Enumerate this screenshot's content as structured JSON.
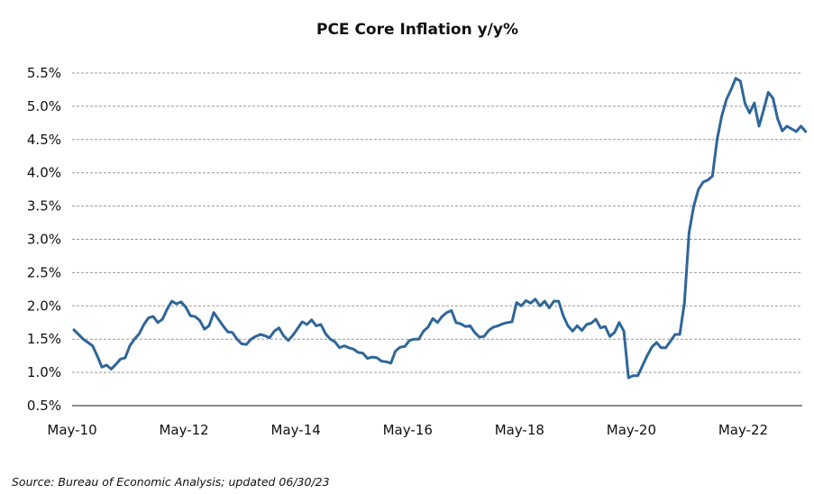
{
  "chart_data": {
    "type": "line",
    "title": "PCE Core Inflation y/y%",
    "xlabel": "",
    "ylabel": "",
    "source": "Source: Bureau of Economic Analysis; updated 06/30/23",
    "start_month": "May-10",
    "frequency": "monthly",
    "x_tick_labels": [
      "May-10",
      "May-12",
      "May-14",
      "May-16",
      "May-18",
      "May-20",
      "May-22"
    ],
    "y_tick_labels": [
      "0.5%",
      "1.0%",
      "1.5%",
      "2.0%",
      "2.5%",
      "3.0%",
      "3.5%",
      "4.0%",
      "4.5%",
      "5.0%",
      "5.5%"
    ],
    "ylim": [
      0.5,
      5.5
    ],
    "grid": "horizontal dashed",
    "line_color": "#2e6699",
    "series": [
      {
        "name": "PCE Core Inflation y/y%",
        "values": [
          1.64,
          1.57,
          1.5,
          1.45,
          1.4,
          1.25,
          1.08,
          1.11,
          1.05,
          1.12,
          1.2,
          1.22,
          1.4,
          1.5,
          1.58,
          1.72,
          1.82,
          1.84,
          1.75,
          1.8,
          1.95,
          2.07,
          2.03,
          2.06,
          1.98,
          1.85,
          1.84,
          1.78,
          1.65,
          1.7,
          1.9,
          1.8,
          1.7,
          1.61,
          1.6,
          1.5,
          1.43,
          1.42,
          1.5,
          1.54,
          1.57,
          1.55,
          1.52,
          1.62,
          1.67,
          1.55,
          1.48,
          1.56,
          1.66,
          1.76,
          1.72,
          1.79,
          1.7,
          1.72,
          1.58,
          1.5,
          1.46,
          1.37,
          1.4,
          1.37,
          1.35,
          1.3,
          1.29,
          1.21,
          1.23,
          1.22,
          1.17,
          1.16,
          1.14,
          1.32,
          1.38,
          1.39,
          1.48,
          1.5,
          1.5,
          1.62,
          1.68,
          1.81,
          1.75,
          1.84,
          1.9,
          1.93,
          1.75,
          1.73,
          1.69,
          1.7,
          1.6,
          1.53,
          1.54,
          1.63,
          1.68,
          1.7,
          1.73,
          1.75,
          1.76,
          2.05,
          2.0,
          2.08,
          2.04,
          2.1,
          2.0,
          2.07,
          1.97,
          2.07,
          2.07,
          1.85,
          1.7,
          1.62,
          1.7,
          1.63,
          1.72,
          1.74,
          1.8,
          1.67,
          1.69,
          1.54,
          1.6,
          1.75,
          1.62,
          0.92,
          0.95,
          0.95,
          1.1,
          1.25,
          1.38,
          1.45,
          1.37,
          1.37,
          1.47,
          1.57,
          1.57,
          2.05,
          3.1,
          3.5,
          3.75,
          3.86,
          3.89,
          3.95,
          4.5,
          4.85,
          5.1,
          5.25,
          5.42,
          5.38,
          5.04,
          4.9,
          5.05,
          4.7,
          4.95,
          5.21,
          5.12,
          4.81,
          4.63,
          4.7,
          4.66,
          4.62,
          4.7,
          4.62
        ]
      }
    ]
  }
}
